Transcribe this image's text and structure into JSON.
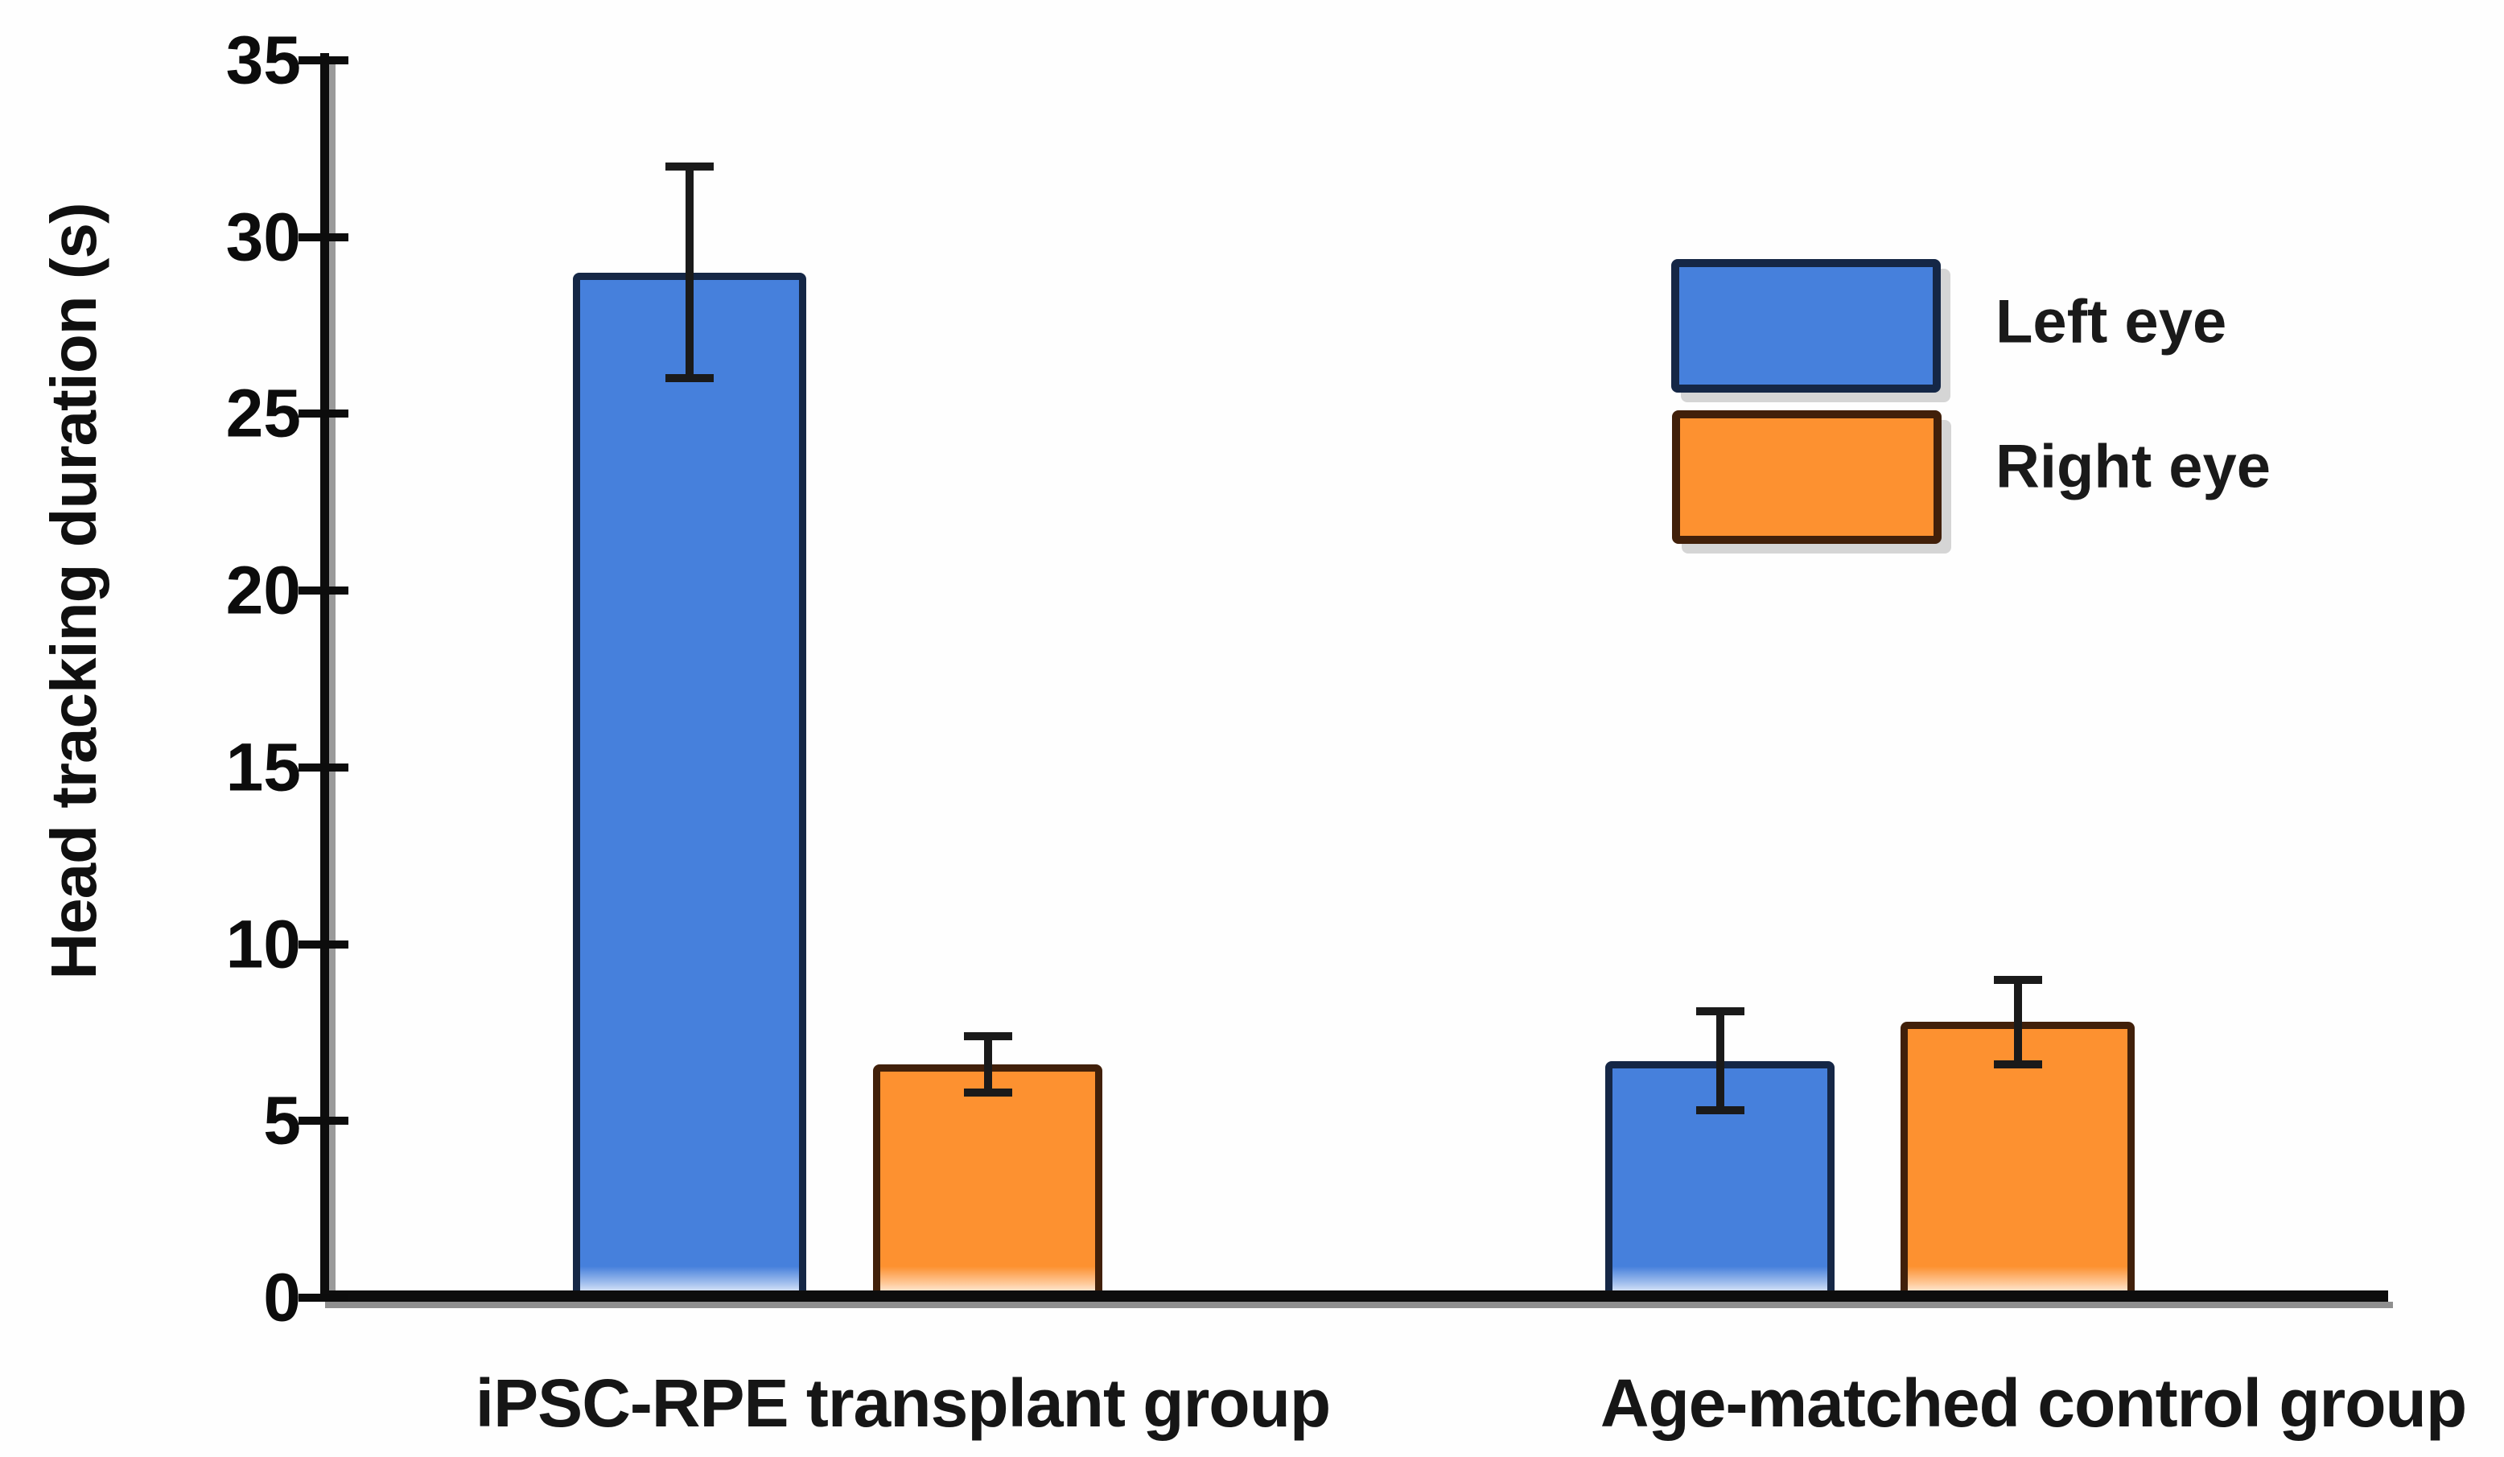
{
  "colors": {
    "left_eye_fill": "#4680DC",
    "left_eye_border": "#152746",
    "right_eye_fill": "#FD9130",
    "right_eye_border": "#41200A",
    "axis": "#0d0d0d",
    "error_bar": "#1a1a1a"
  },
  "legend": [
    {
      "label": "Left eye",
      "color": "#4680DC",
      "border": "#152746"
    },
    {
      "label": "Right eye",
      "color": "#FD9130",
      "border": "#41200A"
    }
  ],
  "chart_data": {
    "type": "bar",
    "title": "",
    "xlabel": "",
    "ylabel": "Head tracking duration (s)",
    "ylim": [
      0,
      35
    ],
    "yticks": [
      0,
      5,
      10,
      15,
      20,
      25,
      30,
      35
    ],
    "grid": false,
    "legend_position": "upper right",
    "categories": [
      "iPSC-RPE transplant group",
      "Age-matched control group"
    ],
    "series": [
      {
        "name": "Left eye",
        "color": "#4680DC",
        "border": "#152746",
        "values": [
          29.0,
          6.7
        ],
        "errors": [
          3.0,
          1.4
        ]
      },
      {
        "name": "Right eye",
        "color": "#FD9130",
        "border": "#41200A",
        "values": [
          6.6,
          7.8
        ],
        "errors": [
          0.8,
          1.2
        ]
      }
    ],
    "error_bars": true
  }
}
